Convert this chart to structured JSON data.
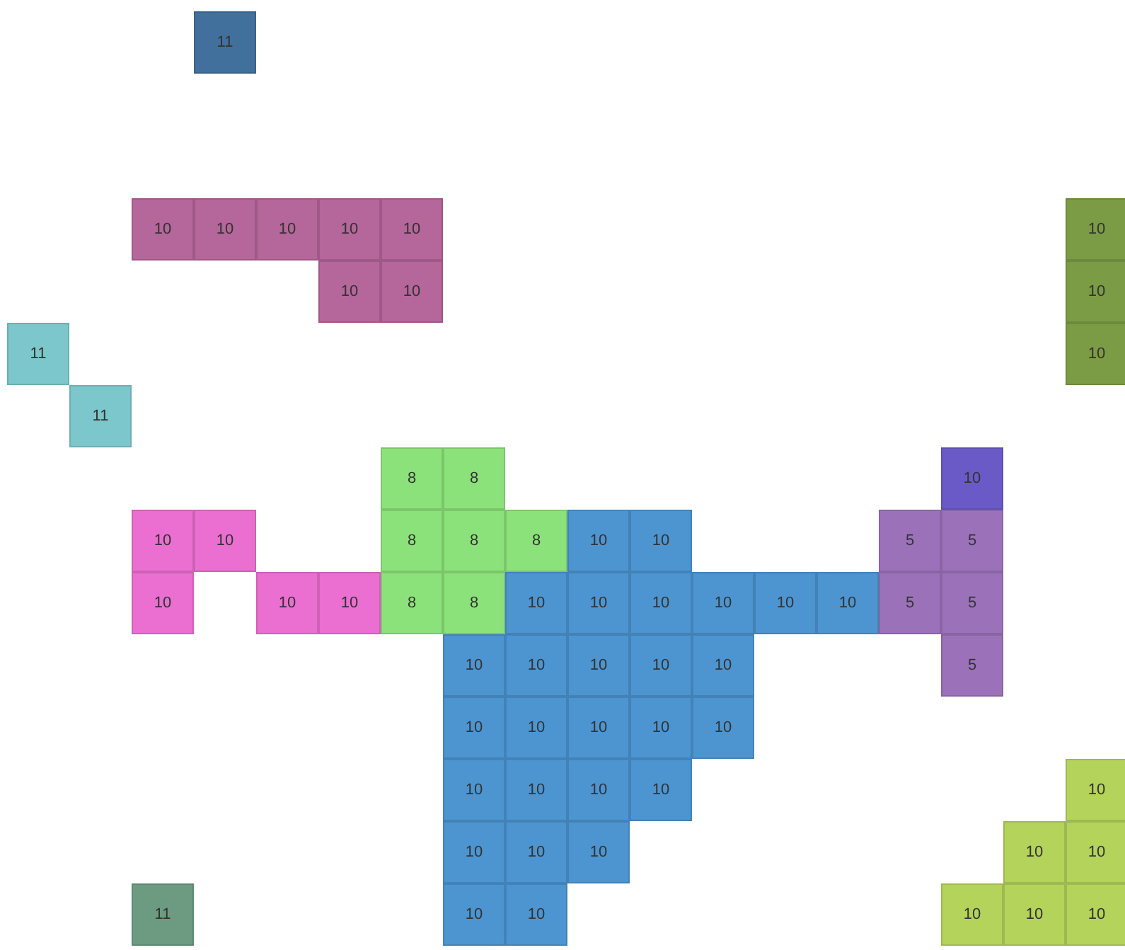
{
  "chart_data": {
    "type": "other",
    "data_labels": true,
    "values": [
      11,
      10,
      10,
      10,
      10,
      10,
      10,
      10,
      10,
      10,
      11,
      10,
      11,
      8,
      8,
      10,
      10,
      10,
      8,
      8,
      8,
      10,
      10,
      5,
      5,
      10,
      10,
      10,
      8,
      8,
      10,
      10,
      10,
      10,
      10,
      10,
      5,
      5,
      10,
      10,
      10,
      10,
      10,
      5,
      10,
      10,
      10,
      10,
      10,
      10,
      10,
      10,
      10,
      10,
      10,
      10,
      10,
      10,
      10,
      11,
      10,
      10,
      10,
      10,
      10
    ],
    "colors": [
      "#41709c",
      "#b5669a",
      "#b5669a",
      "#b5669a",
      "#b5669a",
      "#b5669a",
      "#7b9c45",
      "#b5669a",
      "#b5669a",
      "#7b9c45",
      "#7cc7cb",
      "#7b9c45",
      "#7cc7cb",
      "#8ce27a",
      "#8ce27a",
      "#6a5ac8",
      "#ea6fd0",
      "#ea6fd0",
      "#8ce27a",
      "#8ce27a",
      "#8ce27a",
      "#4d95d1",
      "#4d95d1",
      "#9b72b9",
      "#9b72b9",
      "#ea6fd0",
      "#ea6fd0",
      "#ea6fd0",
      "#8ce27a",
      "#8ce27a",
      "#4d95d1",
      "#4d95d1",
      "#4d95d1",
      "#4d95d1",
      "#4d95d1",
      "#4d95d1",
      "#9b72b9",
      "#9b72b9",
      "#4d95d1",
      "#4d95d1",
      "#4d95d1",
      "#4d95d1",
      "#4d95d1",
      "#9b72b9",
      "#4d95d1",
      "#4d95d1",
      "#4d95d1",
      "#4d95d1",
      "#4d95d1",
      "#4d95d1",
      "#4d95d1",
      "#4d95d1",
      "#4d95d1",
      "#b4d35b",
      "#4d95d1",
      "#4d95d1",
      "#4d95d1",
      "#b4d35b",
      "#b4d35b",
      "#6c9b82",
      "#4d95d1",
      "#4d95d1",
      "#b4d35b",
      "#b4d35b",
      "#b4d35b"
    ]
  }
}
